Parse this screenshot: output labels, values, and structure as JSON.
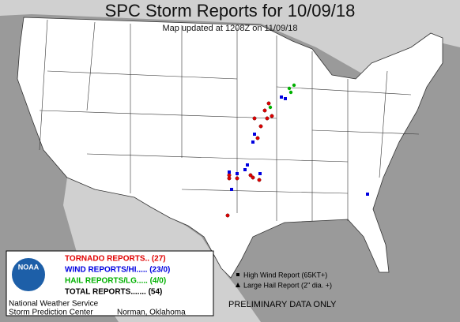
{
  "header": {
    "title": "SPC Storm Reports for 10/09/18",
    "subtitle": "Map updated at 1208Z on 11/09/18"
  },
  "legend": {
    "logo": "NOAA",
    "items": [
      "TORNADO REPORTS.. (27)",
      "WIND REPORTS/HI..... (23/0)",
      "HAIL REPORTS/LG..... (4/0)",
      "TOTAL REPORTS....... (54)"
    ],
    "high_wind": "High Wind Report (65KT+)",
    "large_hail": "Large Hail Report (2\" dia. +)"
  },
  "footer": {
    "preliminary": "PRELIMINARY DATA ONLY",
    "agency": "National Weather Service",
    "center": "Storm Prediction Center",
    "location": "Norman, Oklahoma"
  }
}
